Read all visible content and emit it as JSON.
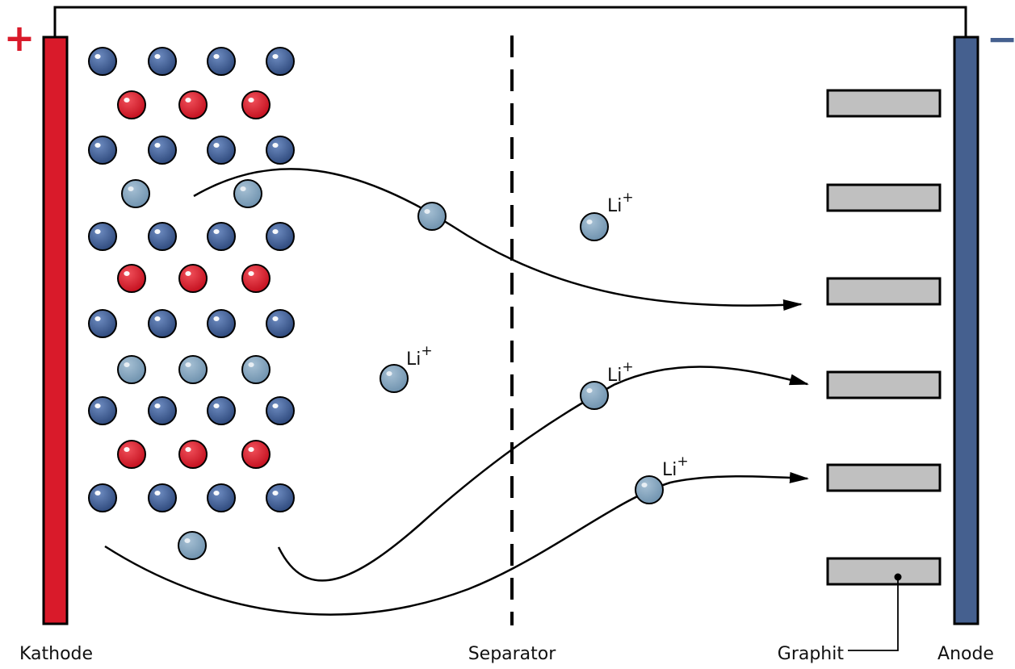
{
  "labels": {
    "cathode": "Kathode",
    "separator": "Separator",
    "graphite": "Graphit",
    "anode": "Anode"
  },
  "signs": {
    "plus": "+",
    "minus": "−"
  },
  "ion_label": {
    "base": "Li",
    "charge": "+"
  },
  "colors": {
    "cathode": "#d91a2a",
    "anode": "#45608f",
    "blue_atom": "#3e5a8e",
    "red_atom": "#d6182a",
    "li_ion": "#7c9fba",
    "graphite": "#c0c0c0"
  }
}
